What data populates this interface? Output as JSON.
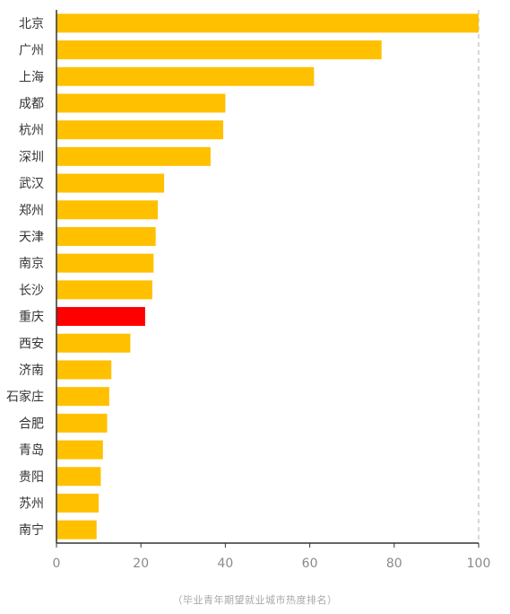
{
  "chart_data": {
    "type": "bar",
    "orientation": "horizontal",
    "categories": [
      "北京",
      "广州",
      "上海",
      "成都",
      "杭州",
      "深圳",
      "武汉",
      "郑州",
      "天津",
      "南京",
      "长沙",
      "重庆",
      "西安",
      "济南",
      "石家庄",
      "合肥",
      "青岛",
      "贵阳",
      "苏州",
      "南宁"
    ],
    "values": [
      100,
      77,
      61,
      40,
      39.5,
      36.5,
      25.5,
      24,
      23.5,
      23,
      22.7,
      21,
      17.5,
      13,
      12.5,
      12,
      11,
      10.5,
      10,
      9.5
    ],
    "highlight": "重庆",
    "xlim": [
      0,
      100
    ],
    "xticks": [
      0,
      20,
      40,
      60,
      80,
      100
    ],
    "tick_labels": [
      "0",
      "20",
      "40",
      "60",
      "80",
      "100"
    ],
    "grid": false,
    "reference_line": 100
  },
  "caption": "（毕业青年期望就业城市热度排名）",
  "colors": {
    "bar": "#FFC000",
    "highlight": "#FF0000",
    "axis": "#333333",
    "reference_line": "#bdbdbd",
    "tick_text": "#8a8a8a",
    "label_text": "#333333"
  }
}
